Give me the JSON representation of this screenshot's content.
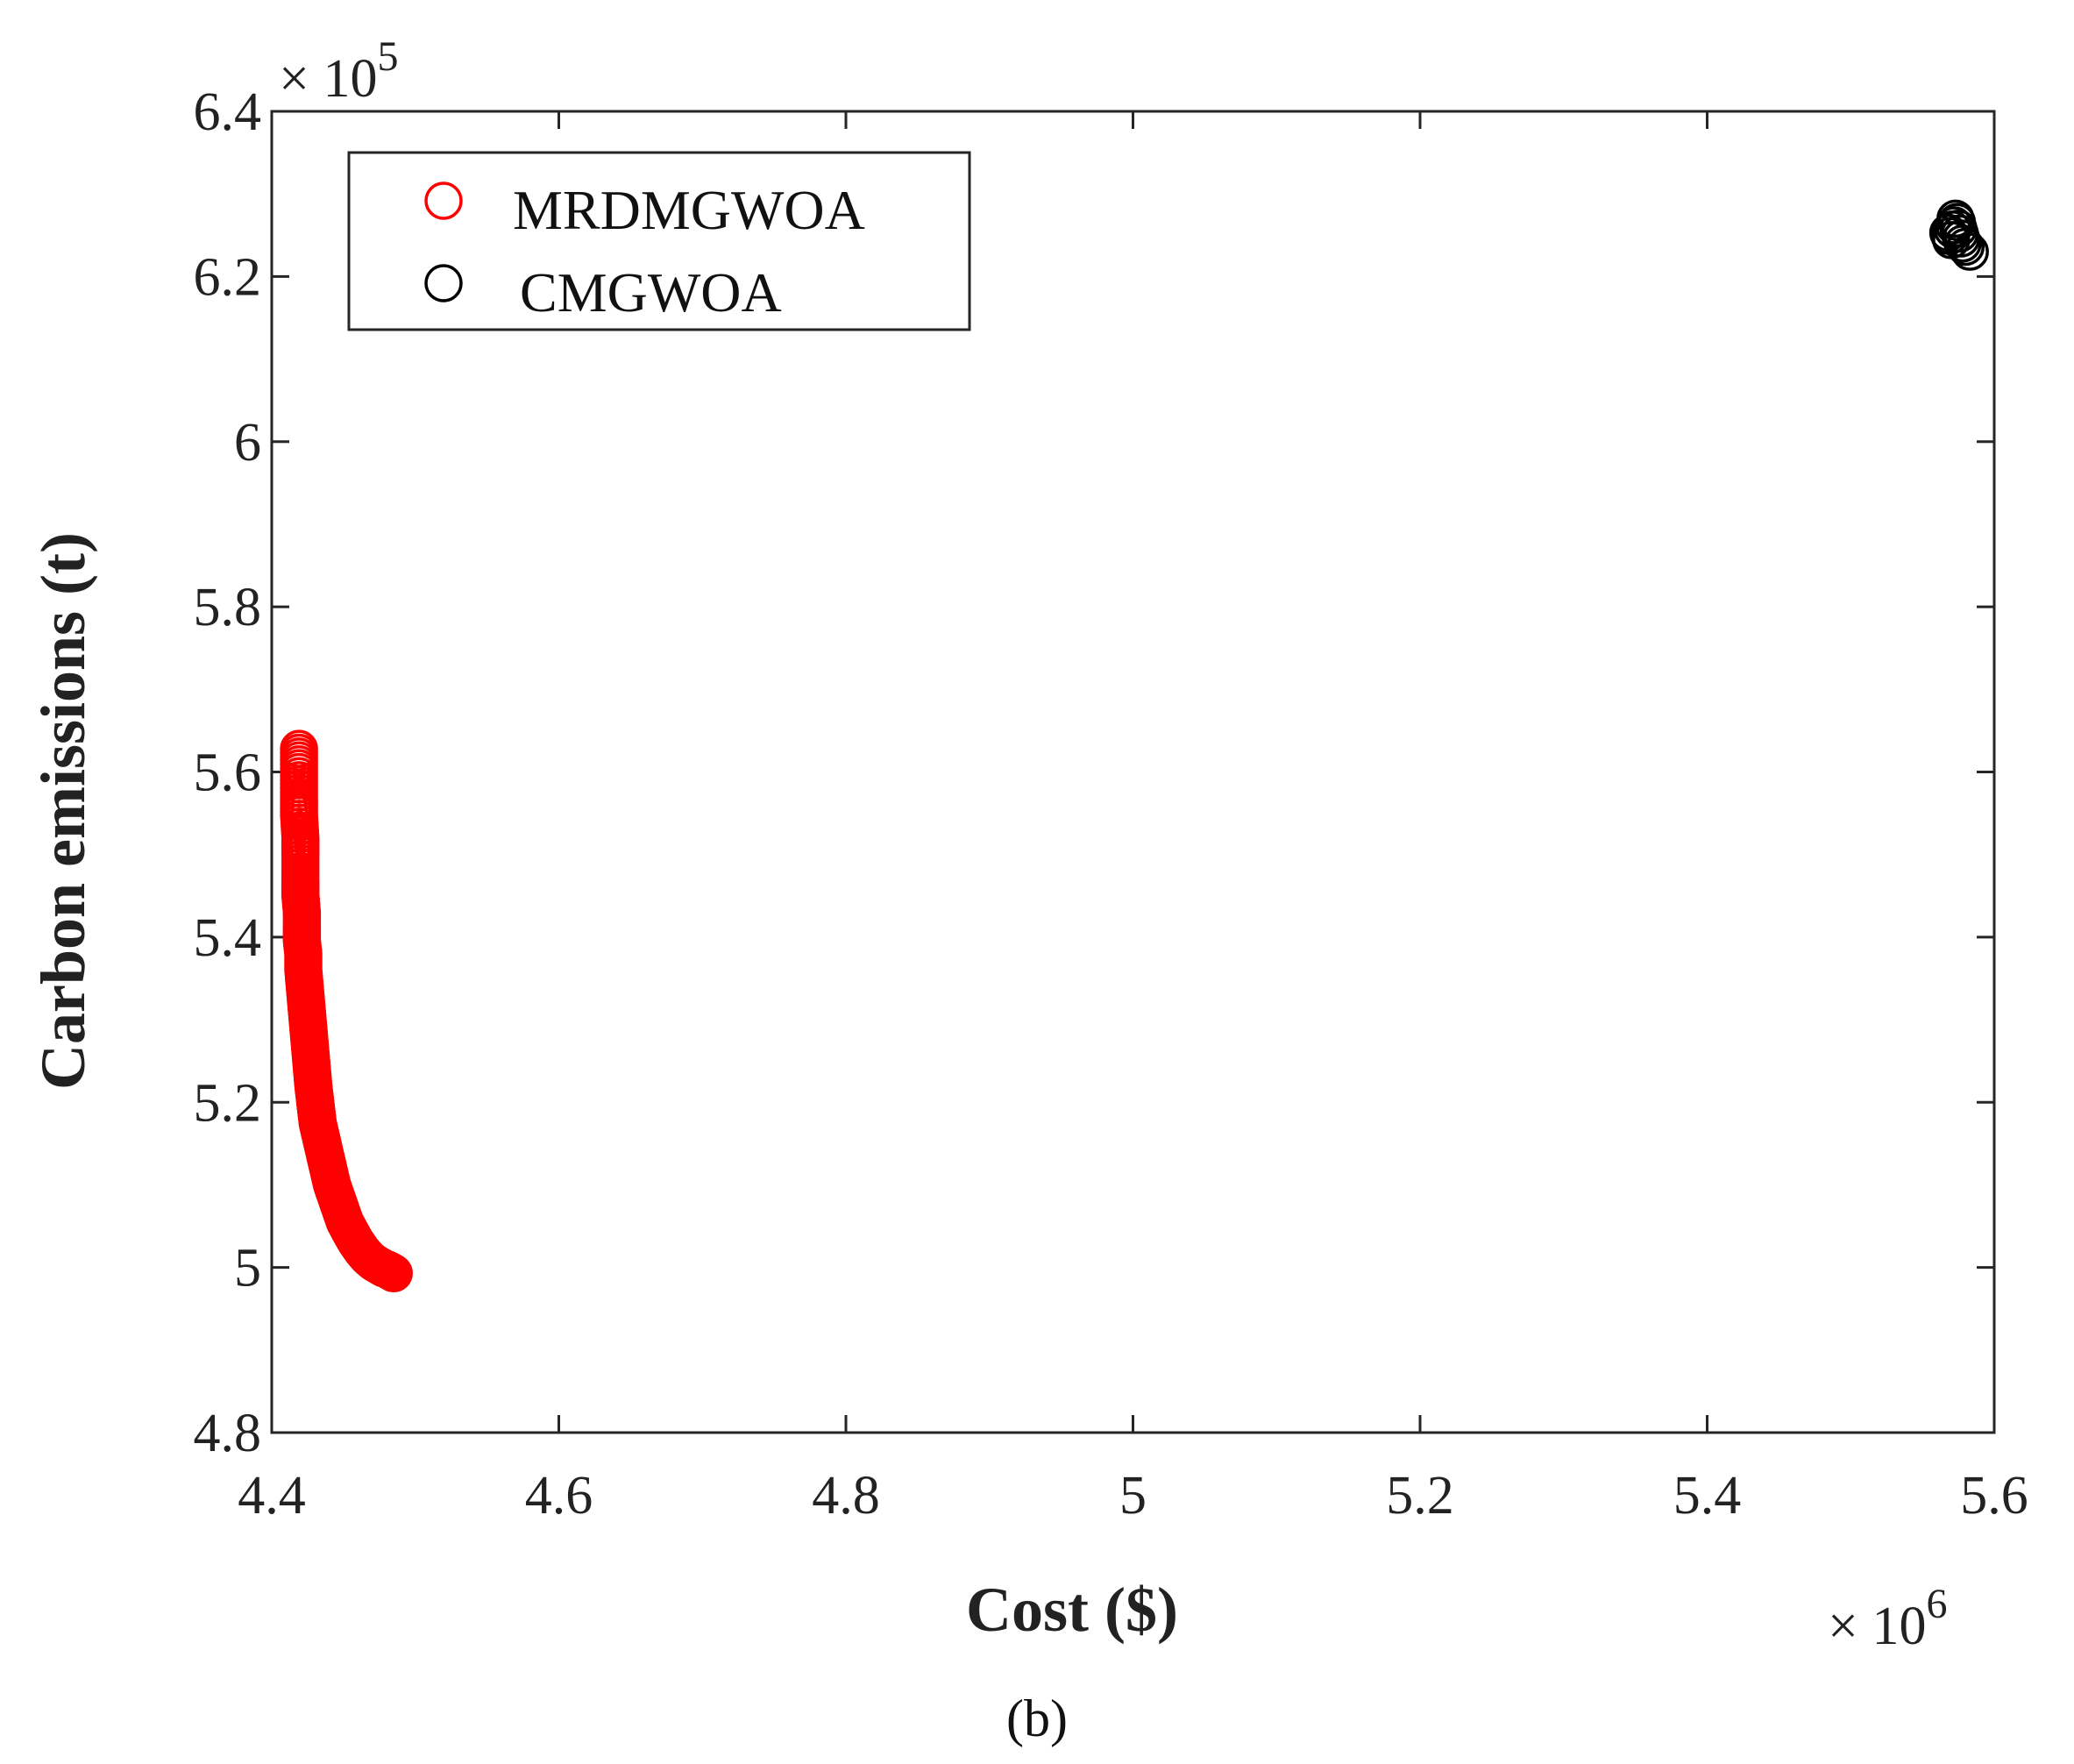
{
  "chart_data": {
    "type": "scatter",
    "title": "",
    "xlabel": "Cost ($)",
    "ylabel": "Carbon emissions (t)",
    "x_multiplier_prefix": "× 10",
    "x_multiplier_exp": "6",
    "y_multiplier_prefix": "× 10",
    "y_multiplier_exp": "5",
    "xlim": [
      4.4,
      5.6
    ],
    "ylim": [
      4.8,
      6.4
    ],
    "xticks": [
      4.4,
      4.6,
      4.8,
      5.0,
      5.2,
      5.4,
      5.6
    ],
    "xtick_labels": [
      "4.4",
      "4.6",
      "4.8",
      "5",
      "5.2",
      "5.4",
      "5.6"
    ],
    "yticks": [
      4.8,
      5.0,
      5.2,
      5.4,
      5.6,
      5.8,
      6.0,
      6.2,
      6.4
    ],
    "ytick_labels": [
      "4.8",
      "5",
      "5.2",
      "5.4",
      "5.6",
      "5.8",
      "6",
      "6.2",
      "6.4"
    ],
    "grid": false,
    "legend_position": "top-left",
    "caption": "(b)",
    "series": [
      {
        "name": "MRDMGWOA",
        "color": "#ff0000",
        "marker": "circle-open",
        "x": [
          4.419,
          4.419,
          4.419,
          4.419,
          4.42,
          4.42,
          4.42,
          4.42,
          4.421,
          4.421,
          4.421,
          4.422,
          4.422,
          4.423,
          4.424,
          4.425,
          4.426,
          4.427,
          4.428,
          4.429,
          4.43,
          4.431,
          4.432,
          4.434,
          4.436,
          4.438,
          4.44,
          4.442,
          4.445,
          4.448,
          4.451,
          4.455,
          4.459,
          4.463,
          4.467,
          4.471,
          4.475,
          4.478,
          4.481,
          4.483,
          4.484,
          4.485
        ],
        "y": [
          5.628,
          5.6,
          5.57,
          5.548,
          5.52,
          5.5,
          5.47,
          5.45,
          5.43,
          5.41,
          5.395,
          5.38,
          5.36,
          5.34,
          5.32,
          5.3,
          5.28,
          5.26,
          5.24,
          5.22,
          5.205,
          5.19,
          5.175,
          5.16,
          5.145,
          5.13,
          5.115,
          5.1,
          5.085,
          5.07,
          5.055,
          5.042,
          5.03,
          5.02,
          5.012,
          5.006,
          5.002,
          4.999,
          4.997,
          4.995,
          4.994,
          4.993
        ]
      },
      {
        "name": "CMGWOA",
        "color": "#000000",
        "marker": "circle-open",
        "x": [
          5.568,
          5.569,
          5.57,
          5.571,
          5.572,
          5.573,
          5.574,
          5.575,
          5.576,
          5.577,
          5.578,
          5.58,
          5.583
        ],
        "y": [
          6.253,
          6.249,
          6.244,
          6.257,
          6.262,
          6.27,
          6.266,
          6.258,
          6.252,
          6.246,
          6.24,
          6.236,
          6.23
        ]
      }
    ]
  }
}
